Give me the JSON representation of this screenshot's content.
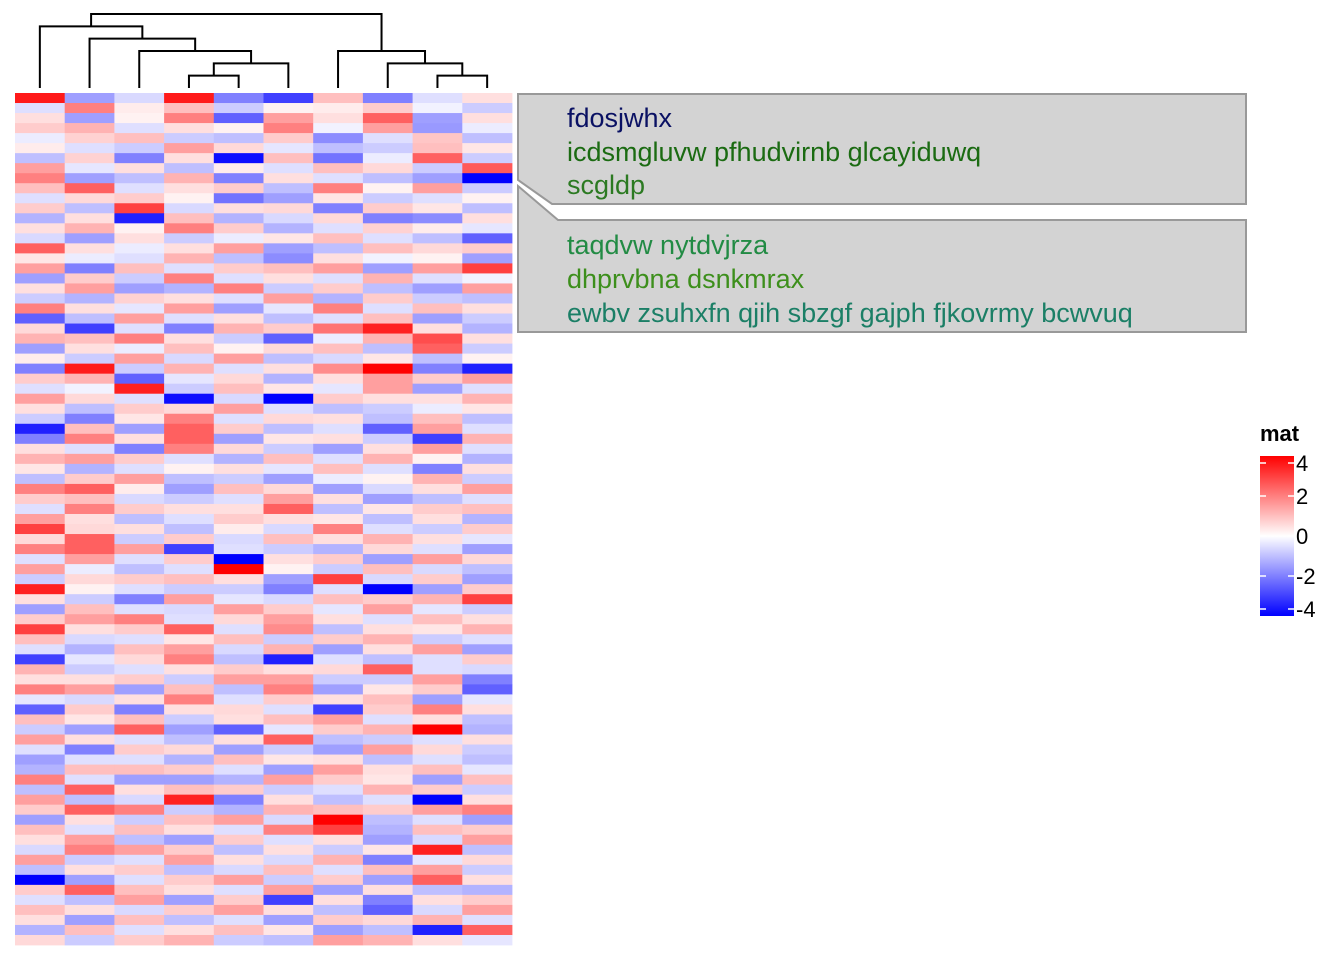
{
  "chart_data": {
    "type": "heatmap",
    "n_rows": 85,
    "n_cols": 10,
    "dendrogram": "columns",
    "color_scale": {
      "low": "#0000FF",
      "mid": "#FFFFFF",
      "high": "#FF0000",
      "min": -4,
      "max": 4
    },
    "rows": [
      [
        3.6,
        -1.5,
        -0.6,
        3.6,
        -2.0,
        -3.0,
        1.0,
        -2.0,
        -0.5,
        0.5
      ],
      [
        -0.5,
        2.0,
        0.3,
        1.0,
        -0.8,
        0.2,
        0.3,
        0.8,
        -0.2,
        -0.8
      ],
      [
        0.5,
        -1.5,
        0.2,
        2.0,
        -2.5,
        1.5,
        0.5,
        2.5,
        -1.5,
        0.5
      ],
      [
        0.8,
        1.2,
        -0.5,
        0.5,
        0.2,
        2.0,
        -0.2,
        1.5,
        -1.6,
        -0.3
      ],
      [
        -0.3,
        0.7,
        1.0,
        -0.8,
        -1.0,
        0.8,
        -1.8,
        -0.5,
        0.9,
        -1.0
      ],
      [
        0.3,
        -0.5,
        -0.8,
        1.5,
        0.6,
        -0.4,
        -1.0,
        -0.8,
        1.0,
        0.4
      ],
      [
        -1.0,
        0.7,
        -2.0,
        0.5,
        -3.8,
        1.0,
        -2.2,
        -0.3,
        2.5,
        -0.8
      ],
      [
        1.5,
        -0.4,
        0.5,
        -1.0,
        0.3,
        -0.5,
        1.0,
        0.6,
        -0.8,
        2.6
      ],
      [
        2.0,
        -1.5,
        -1.0,
        1.2,
        -2.0,
        0.5,
        -0.5,
        -1.0,
        -1.5,
        -4.0
      ],
      [
        1.0,
        2.5,
        -0.5,
        0.5,
        0.8,
        -1.0,
        2.0,
        0.2,
        1.5,
        -0.8
      ],
      [
        -0.5,
        0.6,
        0.8,
        0.2,
        -2.2,
        -1.5,
        0.4,
        -0.8,
        -0.5,
        0.2
      ],
      [
        0.8,
        -1.0,
        3.0,
        -0.6,
        0.5,
        0.6,
        -2.0,
        0.8,
        0.4,
        -1.0
      ],
      [
        -1.2,
        0.5,
        -3.5,
        1.0,
        -1.2,
        -0.6,
        0.6,
        -2.0,
        -1.8,
        0.5
      ],
      [
        0.5,
        1.2,
        0.2,
        2.0,
        0.8,
        -1.2,
        -0.5,
        0.7,
        0.3,
        -0.4
      ],
      [
        -0.6,
        -1.5,
        0.5,
        -0.8,
        -0.3,
        0.4,
        1.0,
        -0.5,
        -1.0,
        -2.5
      ],
      [
        2.5,
        0.5,
        -0.3,
        0.5,
        1.5,
        -1.5,
        -1.0,
        1.0,
        0.6,
        0.8
      ],
      [
        0.4,
        -0.3,
        -0.5,
        1.2,
        -1.0,
        -1.8,
        0.5,
        -0.2,
        0.2,
        -1.5
      ],
      [
        1.5,
        -2.0,
        1.0,
        -0.5,
        0.8,
        1.0,
        1.5,
        -1.5,
        1.5,
        3.0
      ],
      [
        -1.5,
        0.8,
        -0.8,
        2.0,
        -0.5,
        0.5,
        -0.5,
        1.2,
        -0.5,
        -0.2
      ],
      [
        0.5,
        1.5,
        -1.5,
        -1.2,
        2.0,
        -0.8,
        0.8,
        -1.0,
        -1.5,
        1.5
      ],
      [
        -0.8,
        -1.2,
        0.7,
        0.5,
        -0.5,
        1.5,
        -1.2,
        0.8,
        -0.8,
        -1.0
      ],
      [
        2.0,
        0.5,
        -0.4,
        1.5,
        -1.5,
        -0.4,
        2.0,
        -0.5,
        1.0,
        0.5
      ],
      [
        -2.5,
        -1.0,
        1.5,
        -0.5,
        0.5,
        -1.0,
        -0.5,
        1.0,
        -1.5,
        -0.8
      ],
      [
        0.6,
        -3.0,
        -0.5,
        -2.0,
        1.2,
        0.8,
        2.2,
        3.5,
        0.5,
        -1.2
      ],
      [
        1.2,
        1.0,
        2.0,
        0.5,
        -0.8,
        -2.5,
        -0.3,
        1.2,
        2.8,
        0.5
      ],
      [
        -1.5,
        0.5,
        -0.3,
        1.0,
        0.2,
        0.6,
        1.0,
        -1.0,
        2.5,
        -0.8
      ],
      [
        0.3,
        -0.8,
        1.5,
        -0.6,
        1.5,
        -1.0,
        -0.6,
        0.4,
        -1.0,
        0.2
      ],
      [
        -2.0,
        3.6,
        -0.8,
        1.2,
        -0.5,
        0.5,
        1.8,
        4.0,
        -2.0,
        -3.5
      ],
      [
        0.8,
        1.2,
        -2.5,
        -0.4,
        0.6,
        -1.2,
        0.5,
        1.5,
        0.8,
        1.5
      ],
      [
        -0.5,
        -0.2,
        3.5,
        -0.8,
        1.0,
        0.4,
        -0.4,
        1.5,
        -1.5,
        -0.5
      ],
      [
        1.5,
        0.6,
        -0.5,
        -3.8,
        -0.6,
        -4.0,
        0.8,
        0.5,
        0.5,
        1.2
      ],
      [
        0.5,
        -1.0,
        0.8,
        0.6,
        1.5,
        -0.5,
        -1.0,
        -0.8,
        -0.3,
        0.4
      ],
      [
        -0.8,
        -2.0,
        0.4,
        2.0,
        -0.5,
        0.6,
        0.5,
        -1.0,
        1.0,
        -1.0
      ],
      [
        -3.5,
        1.0,
        -1.5,
        2.5,
        0.8,
        -1.0,
        -0.5,
        -2.5,
        1.5,
        -0.5
      ],
      [
        -2.0,
        2.0,
        0.5,
        2.5,
        -1.5,
        0.4,
        0.5,
        -0.8,
        -3.0,
        1.2
      ],
      [
        0.5,
        -0.5,
        -2.0,
        2.0,
        0.6,
        -0.8,
        -1.5,
        0.5,
        1.5,
        -0.5
      ],
      [
        1.2,
        1.5,
        0.8,
        -0.5,
        -1.2,
        1.0,
        -0.5,
        1.2,
        0.2,
        -1.2
      ],
      [
        0.4,
        -1.2,
        -0.5,
        0.2,
        0.5,
        -0.4,
        1.0,
        -0.5,
        -2.0,
        0.5
      ],
      [
        -1.0,
        0.8,
        1.5,
        -1.0,
        -0.8,
        -1.5,
        -0.3,
        0.2,
        1.2,
        -0.8
      ],
      [
        2.0,
        2.5,
        0.3,
        -1.5,
        1.0,
        0.6,
        -1.5,
        -0.6,
        0.5,
        1.5
      ],
      [
        0.8,
        1.0,
        -0.6,
        -0.8,
        -0.5,
        1.5,
        0.5,
        -1.5,
        -1.0,
        -0.5
      ],
      [
        -0.5,
        2.0,
        0.8,
        0.5,
        0.5,
        2.5,
        -1.0,
        0.4,
        0.8,
        1.0
      ],
      [
        1.5,
        0.5,
        -1.0,
        -0.5,
        0.8,
        0.5,
        0.4,
        -1.0,
        0.5,
        -1.2
      ],
      [
        3.0,
        0.6,
        0.5,
        -1.0,
        0.3,
        -0.6,
        2.0,
        -0.5,
        -0.8,
        0.8
      ],
      [
        0.6,
        2.5,
        -0.8,
        0.8,
        -0.6,
        1.0,
        0.5,
        1.2,
        0.5,
        -0.4
      ],
      [
        2.0,
        2.5,
        1.5,
        -3.0,
        -0.5,
        -0.8,
        -1.2,
        0.6,
        -0.5,
        -1.5
      ],
      [
        -0.5,
        1.5,
        -0.5,
        0.8,
        -4.0,
        0.5,
        0.8,
        -1.5,
        1.5,
        0.6
      ],
      [
        1.5,
        -0.3,
        -1.0,
        -0.5,
        4.0,
        0.2,
        -0.8,
        1.0,
        -0.6,
        -1.0
      ],
      [
        -0.8,
        0.6,
        0.8,
        1.0,
        0.5,
        -1.5,
        3.0,
        -0.6,
        0.8,
        -1.5
      ],
      [
        3.5,
        0.2,
        -0.5,
        -0.8,
        -0.8,
        -2.0,
        -0.5,
        -4.0,
        -1.5,
        0.8
      ],
      [
        0.5,
        -0.8,
        -2.0,
        1.5,
        -0.4,
        -0.6,
        1.0,
        0.8,
        1.2,
        3.0
      ],
      [
        -1.5,
        1.0,
        -0.5,
        -0.6,
        1.5,
        0.8,
        -0.4,
        1.5,
        -0.4,
        -0.8
      ],
      [
        0.8,
        1.5,
        2.0,
        -0.5,
        0.6,
        1.5,
        0.5,
        -0.5,
        1.0,
        0.5
      ],
      [
        3.0,
        0.5,
        0.8,
        2.5,
        -0.5,
        1.8,
        -1.0,
        0.5,
        0.4,
        1.2
      ],
      [
        1.0,
        -0.6,
        -0.5,
        0.4,
        1.0,
        -0.8,
        0.8,
        1.2,
        -0.8,
        -0.5
      ],
      [
        -0.5,
        -1.2,
        1.0,
        1.5,
        -0.6,
        1.2,
        -1.5,
        0.5,
        1.5,
        -1.5
      ],
      [
        -3.0,
        -0.4,
        0.6,
        2.0,
        -1.0,
        -3.5,
        -0.5,
        -1.0,
        -0.5,
        0.8
      ],
      [
        1.2,
        -0.8,
        -0.5,
        0.5,
        0.8,
        0.5,
        0.6,
        2.5,
        -0.5,
        -0.6
      ],
      [
        0.5,
        0.5,
        0.8,
        -0.8,
        1.5,
        1.5,
        -0.8,
        -0.8,
        1.5,
        -2.0
      ],
      [
        2.0,
        1.5,
        -1.5,
        1.0,
        -1.0,
        2.0,
        -1.5,
        0.4,
        0.8,
        -2.5
      ],
      [
        -0.4,
        -0.6,
        0.5,
        2.0,
        -0.5,
        0.8,
        0.5,
        1.0,
        -1.5,
        -0.4
      ],
      [
        -2.5,
        0.8,
        -2.0,
        0.5,
        0.6,
        -0.5,
        -3.0,
        0.8,
        2.0,
        0.5
      ],
      [
        1.0,
        0.4,
        1.0,
        -0.8,
        0.5,
        1.0,
        1.5,
        -0.5,
        0.5,
        -1.0
      ],
      [
        -0.8,
        -1.5,
        2.5,
        -1.5,
        -2.5,
        -0.4,
        0.8,
        1.2,
        4.0,
        -1.2
      ],
      [
        1.5,
        0.5,
        -0.5,
        -1.0,
        0.5,
        2.5,
        -1.0,
        -0.8,
        -0.5,
        0.5
      ],
      [
        -0.5,
        -2.0,
        0.8,
        0.6,
        -1.5,
        -0.8,
        -1.5,
        1.5,
        0.6,
        -0.8
      ],
      [
        -1.5,
        -0.5,
        -0.5,
        -1.2,
        1.0,
        0.4,
        0.5,
        -1.0,
        -0.5,
        -1.0
      ],
      [
        -1.2,
        1.0,
        1.0,
        0.8,
        -0.5,
        -1.5,
        1.5,
        0.5,
        1.0,
        -0.4
      ],
      [
        2.0,
        -0.5,
        -1.5,
        -1.5,
        -1.2,
        1.5,
        0.8,
        0.4,
        -1.5,
        1.0
      ],
      [
        -1.0,
        2.5,
        0.5,
        1.0,
        0.8,
        -0.8,
        -0.5,
        1.2,
        0.8,
        -0.8
      ],
      [
        1.5,
        -1.0,
        -0.6,
        3.5,
        -2.0,
        0.5,
        -1.0,
        -0.5,
        -4.0,
        0.5
      ],
      [
        0.8,
        2.5,
        2.0,
        -0.8,
        -1.2,
        1.2,
        1.0,
        0.8,
        1.5,
        2.0
      ],
      [
        -1.5,
        0.5,
        -0.8,
        1.0,
        1.5,
        -0.6,
        4.0,
        -1.0,
        -0.5,
        -1.5
      ],
      [
        1.0,
        -0.5,
        1.0,
        0.5,
        -0.5,
        2.0,
        3.0,
        -1.2,
        1.0,
        0.8
      ],
      [
        0.5,
        1.5,
        -1.0,
        -1.5,
        0.8,
        -0.5,
        0.5,
        -1.5,
        -0.6,
        1.5
      ],
      [
        -0.6,
        2.0,
        1.5,
        0.8,
        -1.0,
        0.5,
        -0.8,
        0.4,
        3.5,
        -1.0
      ],
      [
        1.5,
        -0.8,
        -0.5,
        1.5,
        0.5,
        -0.6,
        1.2,
        -2.0,
        -0.4,
        0.6
      ],
      [
        -1.0,
        0.5,
        0.8,
        -1.0,
        -0.6,
        1.0,
        -0.5,
        1.0,
        1.5,
        -0.8
      ],
      [
        -4.0,
        -1.5,
        -0.5,
        0.8,
        1.5,
        -0.8,
        0.8,
        -1.5,
        2.5,
        0.5
      ],
      [
        0.8,
        2.5,
        1.0,
        0.5,
        -0.5,
        1.5,
        -1.5,
        0.5,
        -1.0,
        -1.2
      ],
      [
        -0.5,
        -1.0,
        1.5,
        -1.5,
        0.8,
        -3.0,
        0.5,
        -2.0,
        0.5,
        0.8
      ],
      [
        1.0,
        0.5,
        -0.6,
        0.8,
        1.5,
        0.5,
        -1.0,
        -2.5,
        -0.6,
        1.5
      ],
      [
        0.5,
        -1.5,
        1.0,
        -1.0,
        -0.5,
        -1.5,
        0.8,
        0.6,
        1.2,
        -0.5
      ],
      [
        -1.2,
        1.0,
        -0.5,
        0.5,
        1.0,
        0.4,
        -1.5,
        -1.0,
        -3.5,
        2.5
      ],
      [
        0.6,
        -0.8,
        0.8,
        1.2,
        -0.8,
        -1.0,
        1.5,
        1.2,
        0.5,
        -0.4
      ]
    ],
    "dendrogram_tree": {
      "left": {
        "left": 0,
        "right": {
          "left": 1,
          "right": {
            "left": 2,
            "right": {
              "left": {
                "left": 3,
                "right": 4
              },
              "right": 5
            }
          }
        }
      },
      "right": {
        "left": 6,
        "right": {
          "left": 7,
          "right": {
            "left": 8,
            "right": 9
          }
        }
      }
    },
    "legend": {
      "title": "mat",
      "ticks": [
        4,
        2,
        0,
        -2,
        -4
      ],
      "tick_labels": [
        "4",
        "2",
        "0",
        "-2",
        "-4"
      ]
    },
    "annotations": [
      {
        "lines": [
          {
            "text": "fdosjwhx",
            "color": "#0A1163"
          },
          {
            "text": "icdsmgluvw pfhudvirnb glcayiduwq",
            "color": "#1B6B12"
          },
          {
            "text": "scgldp",
            "color": "#2C7A22"
          }
        ]
      },
      {
        "lines": [
          {
            "text": "taqdvw nytdvjrza",
            "color": "#228B44"
          },
          {
            "text": "dhprvbna dsnkmrax",
            "color": "#3D8F1C"
          },
          {
            "text": "ewbv zsuhxfn qjih sbzgf gajph fjkovrmy bcwvuq",
            "color": "#1B7F66"
          }
        ]
      }
    ],
    "annotation_style": {
      "fill": "#D3D3D3",
      "stroke": "#999999"
    }
  }
}
